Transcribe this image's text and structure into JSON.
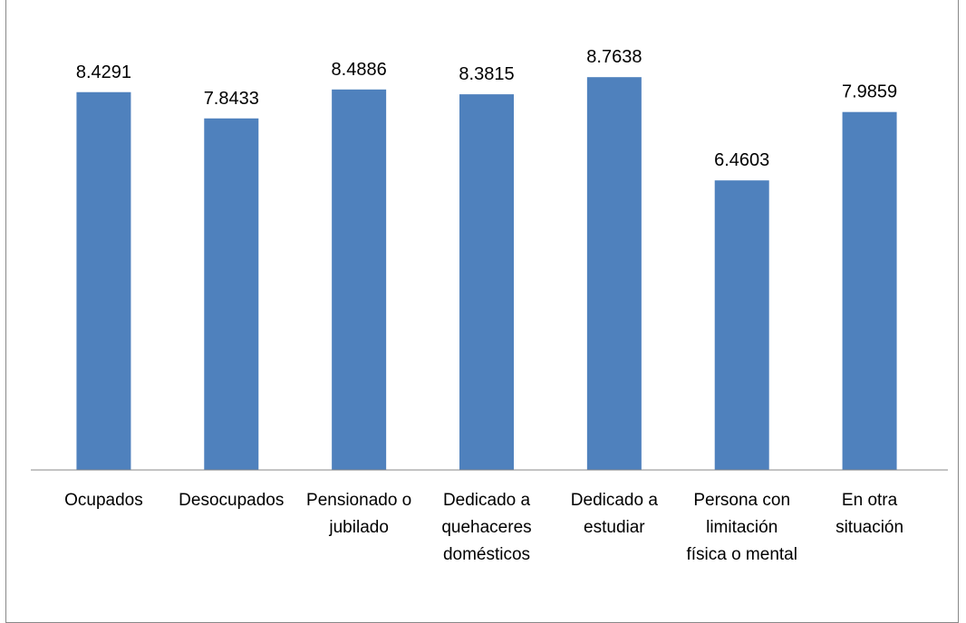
{
  "chart_data": {
    "type": "bar",
    "categories": [
      "Ocupados",
      "Desocupados",
      "Pensionado o jubilado",
      "Dedicado a quehaceres domésticos",
      "Dedicado a estudiar",
      "Persona con limitación física o mental",
      "En otra situación"
    ],
    "values": [
      8.4291,
      7.8433,
      8.4886,
      8.3815,
      8.7638,
      6.4603,
      7.9859
    ],
    "color": "#4f81bd",
    "ylim": [
      0,
      10
    ]
  }
}
